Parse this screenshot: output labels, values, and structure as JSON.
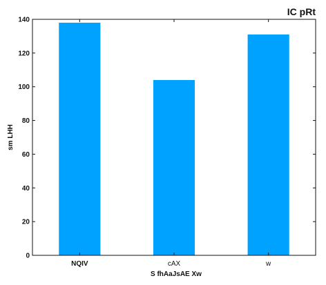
{
  "chart_data": {
    "type": "bar",
    "title": "IC pRt",
    "xlabel": "S fhAaJsAE Xw",
    "ylabel": "sm LHH",
    "categories": [
      "NQIV",
      "cAX",
      "w"
    ],
    "category_bold": [
      true,
      false,
      false
    ],
    "values": [
      138,
      104,
      131
    ],
    "ylim": [
      0,
      140
    ],
    "yticks": [
      0,
      20,
      40,
      60,
      80,
      100,
      120,
      140
    ],
    "grid": false,
    "bar_color": "#00a2ff"
  }
}
